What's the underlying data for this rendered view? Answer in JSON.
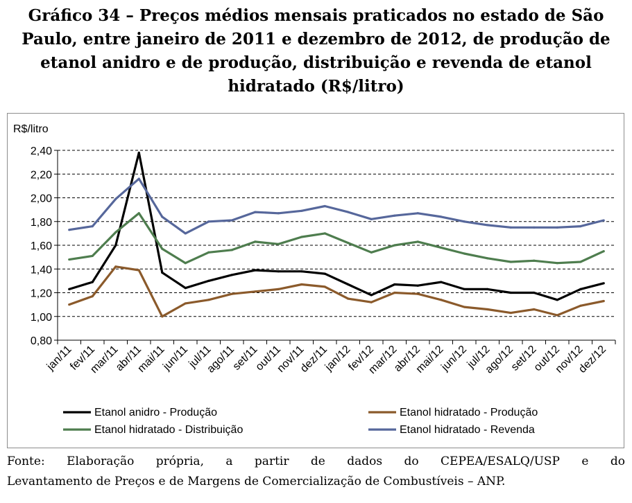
{
  "figure": {
    "title": "Gráfico 34 – Preços médios mensais praticados no estado de São Paulo, entre janeiro de 2011 e dezembro de 2012, de produção de etanol anidro e de produção, distribuição e revenda de etanol hidratado (R$/litro)",
    "source_line1": "Fonte: Elaboração própria, a partir de dados do CEPEA/ESALQ/USP e do",
    "source_line2": "Levantamento de Preços e de Margens de Comercialização de Combustíveis – ANP."
  },
  "chart_data": {
    "type": "line",
    "ylabel": "R$/litro",
    "ylim": [
      0.8,
      2.4
    ],
    "yticks": [
      "0,80",
      "1,00",
      "1,20",
      "1,40",
      "1,60",
      "1,80",
      "2,00",
      "2,20",
      "2,40"
    ],
    "grid": "horizontal dashed",
    "legend_position": "bottom",
    "categories": [
      "jan/11",
      "fev/11",
      "mar/11",
      "abr/11",
      "mai/11",
      "jun/11",
      "jul/11",
      "ago/11",
      "set/11",
      "out/11",
      "nov/11",
      "dez/11",
      "jan/12",
      "fev/12",
      "mar/12",
      "abr/12",
      "mai/12",
      "jun/12",
      "jul/12",
      "ago/12",
      "set/12",
      "out/12",
      "nov/12",
      "dez/12"
    ],
    "series": [
      {
        "name": "Etanol anidro - Produção",
        "color": "#000000",
        "values": [
          1.23,
          1.29,
          1.6,
          2.38,
          1.37,
          1.24,
          1.3,
          1.35,
          1.39,
          1.38,
          1.38,
          1.36,
          1.27,
          1.18,
          1.27,
          1.26,
          1.29,
          1.23,
          1.23,
          1.2,
          1.2,
          1.14,
          1.23,
          1.28
        ]
      },
      {
        "name": "Etanol hidratado - Produção",
        "color": "#8b5a2b",
        "values": [
          1.1,
          1.17,
          1.42,
          1.39,
          1.0,
          1.11,
          1.14,
          1.19,
          1.21,
          1.23,
          1.27,
          1.25,
          1.15,
          1.12,
          1.2,
          1.19,
          1.14,
          1.08,
          1.06,
          1.03,
          1.06,
          1.01,
          1.09,
          1.13
        ]
      },
      {
        "name": "Etanol hidratado - Distribuição",
        "color": "#4e7d4e",
        "values": [
          1.48,
          1.51,
          1.71,
          1.87,
          1.57,
          1.45,
          1.54,
          1.56,
          1.63,
          1.61,
          1.67,
          1.7,
          1.62,
          1.54,
          1.6,
          1.63,
          1.58,
          1.53,
          1.49,
          1.46,
          1.47,
          1.45,
          1.46,
          1.55
        ]
      },
      {
        "name": "Etanol hidratado - Revenda",
        "color": "#56679b",
        "values": [
          1.73,
          1.76,
          1.99,
          2.16,
          1.84,
          1.7,
          1.8,
          1.81,
          1.88,
          1.87,
          1.89,
          1.93,
          1.88,
          1.82,
          1.85,
          1.87,
          1.84,
          1.8,
          1.77,
          1.75,
          1.75,
          1.75,
          1.76,
          1.81
        ]
      }
    ]
  }
}
